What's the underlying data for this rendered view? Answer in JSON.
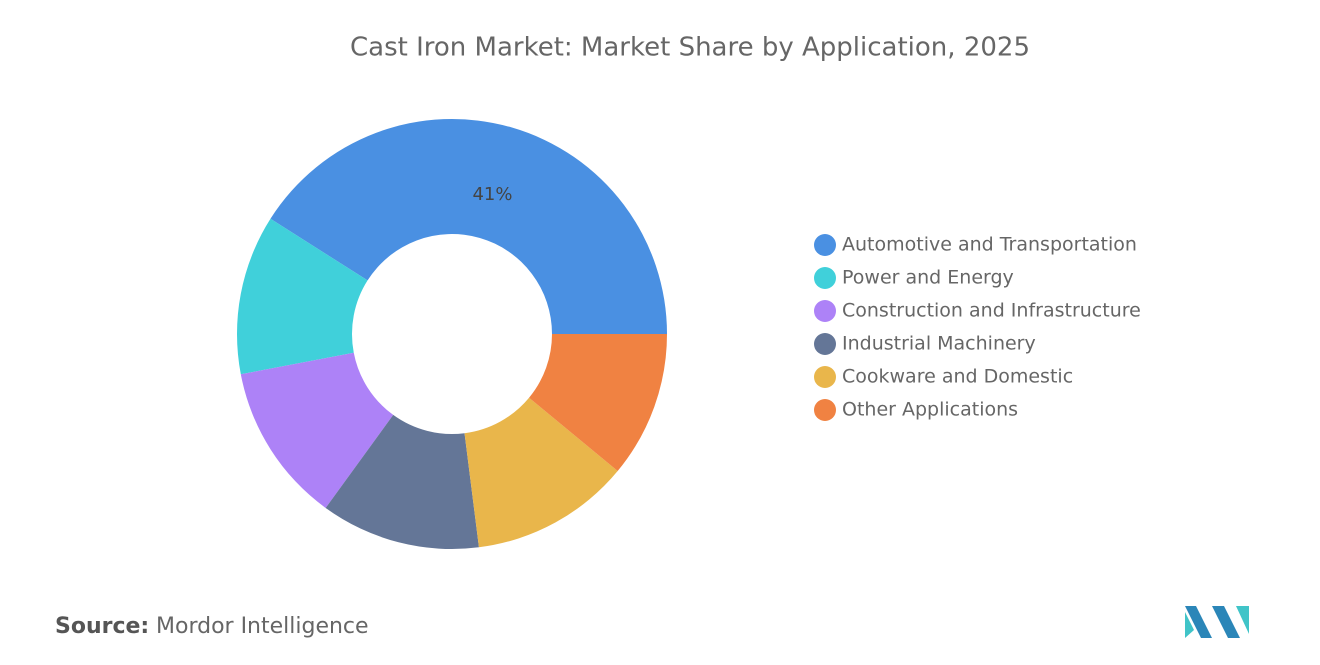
{
  "chart_data": {
    "type": "donut",
    "title": "Cast Iron Market: Market Share by Application, 2025",
    "categories": [
      "Automotive and Transportation",
      "Power and Energy",
      "Construction and Infrastructure",
      "Industrial Machinery",
      "Cookware and Domestic",
      "Other Applications"
    ],
    "values": [
      41,
      12,
      12,
      12,
      12,
      11
    ],
    "value_labels": [
      "41%",
      null,
      null,
      null,
      null,
      null
    ],
    "colors": [
      "#4a90e2",
      "#40d0da",
      "#ad82f7",
      "#647697",
      "#e9b64b",
      "#f08242"
    ],
    "legend": "right"
  },
  "source": {
    "label": "Source:",
    "text": "Mordor Intelligence"
  }
}
